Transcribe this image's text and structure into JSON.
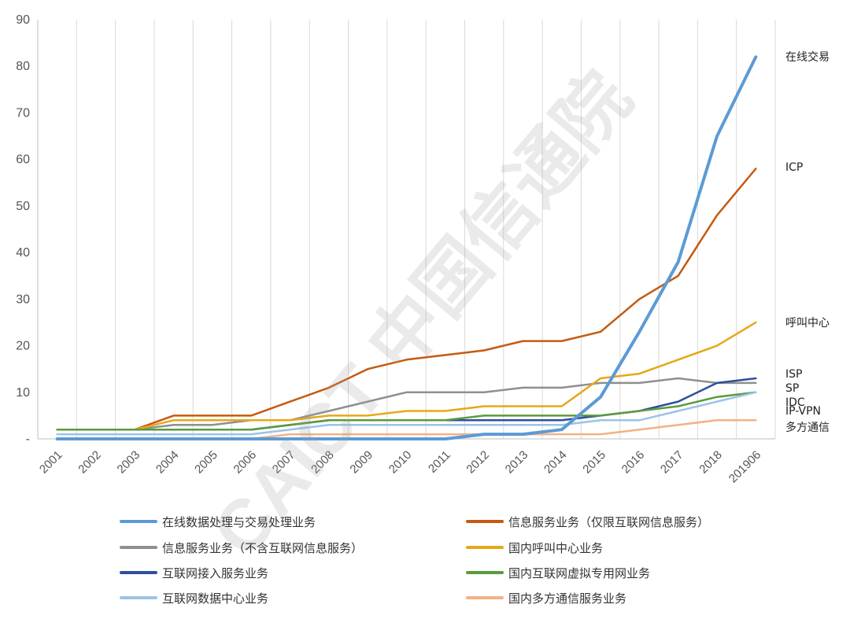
{
  "chart_data": {
    "type": "line",
    "ylim": [
      0,
      90
    ],
    "y_ticks": [
      "90",
      "80",
      "70",
      "60",
      "50",
      "40",
      "30",
      "20",
      "10",
      "-"
    ],
    "categories": [
      "2001",
      "2002",
      "2003",
      "2004",
      "2005",
      "2006",
      "2007",
      "2008",
      "2009",
      "2010",
      "2011",
      "2012",
      "2013",
      "2014",
      "2015",
      "2016",
      "2017",
      "2018",
      "201906"
    ],
    "grid": "vertical",
    "legend_position": "bottom",
    "series": [
      {
        "name": "在线数据处理与交易处理业务",
        "color": "#5b9bd5",
        "width": 4,
        "values": [
          0,
          0,
          0,
          0,
          0,
          0,
          0,
          0,
          0,
          0,
          0,
          1,
          1,
          2,
          9,
          23,
          38,
          65,
          82
        ]
      },
      {
        "name": "信息服务业务（仅限互联网信息服务）",
        "color": "#c55a11",
        "width": 2.5,
        "values": [
          2,
          2,
          2,
          5,
          5,
          5,
          8,
          11,
          15,
          17,
          18,
          19,
          21,
          21,
          23,
          30,
          35,
          48,
          58
        ]
      },
      {
        "name": "信息服务业务（不含互联网信息服务）",
        "color": "#8f8f8f",
        "width": 2.5,
        "values": [
          2,
          2,
          2,
          3,
          3,
          4,
          4,
          6,
          8,
          10,
          10,
          10,
          11,
          11,
          12,
          12,
          13,
          12,
          12
        ]
      },
      {
        "name": "国内呼叫中心业务",
        "color": "#e6a817",
        "width": 2.5,
        "values": [
          2,
          2,
          2,
          4,
          4,
          4,
          4,
          5,
          5,
          6,
          6,
          7,
          7,
          7,
          13,
          14,
          17,
          20,
          25
        ]
      },
      {
        "name": "互联网接入服务业务",
        "color": "#2e4e9e",
        "width": 2.5,
        "values": [
          2,
          2,
          2,
          2,
          2,
          2,
          3,
          4,
          4,
          4,
          4,
          4,
          4,
          4,
          5,
          6,
          8,
          12,
          13
        ]
      },
      {
        "name": "国内互联网虚拟专用网业务",
        "color": "#5a9b3c",
        "width": 2.5,
        "values": [
          2,
          2,
          2,
          2,
          2,
          2,
          3,
          4,
          4,
          4,
          4,
          5,
          5,
          5,
          5,
          6,
          7,
          9,
          10
        ]
      },
      {
        "name": "互联网数据中心业务",
        "color": "#9dc3e6",
        "width": 2.5,
        "values": [
          1,
          1,
          1,
          1,
          1,
          1,
          2,
          3,
          3,
          3,
          3,
          3,
          3,
          3,
          4,
          4,
          6,
          8,
          10
        ]
      },
      {
        "name": "国内多方通信服务业务",
        "color": "#f4b183",
        "width": 2.5,
        "values": [
          0,
          0,
          0,
          0,
          0,
          0,
          1,
          1,
          1,
          1,
          1,
          1,
          1,
          1,
          1,
          2,
          3,
          4,
          4
        ]
      }
    ],
    "end_labels": [
      {
        "text": "在线交易",
        "value": 82
      },
      {
        "text": "ICP",
        "value": 58
      },
      {
        "text": "呼叫中心",
        "value": 25
      },
      {
        "text": "ISP",
        "value": 13.5
      },
      {
        "text": "SP",
        "value": 10.5
      },
      {
        "text": "IDC",
        "value": 7.5
      },
      {
        "text": "IP-VPN",
        "value": 5.5
      },
      {
        "text": "多方通信",
        "value": 2.5
      }
    ]
  },
  "watermark": {
    "text": "CAICT 中国信通院"
  }
}
